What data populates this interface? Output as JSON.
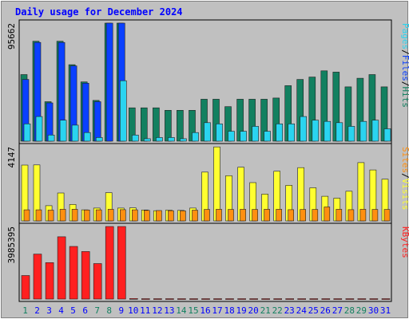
{
  "chart_data": {
    "type": "bar",
    "title": "Daily usage for December 2024",
    "categories": [
      "1",
      "2",
      "3",
      "4",
      "5",
      "6",
      "7",
      "8",
      "9",
      "10",
      "11",
      "12",
      "13",
      "14",
      "15",
      "16",
      "17",
      "18",
      "19",
      "20",
      "21",
      "22",
      "23",
      "24",
      "25",
      "26",
      "27",
      "28",
      "29",
      "30",
      "31"
    ],
    "weekend_days": [
      "1",
      "7",
      "8",
      "14",
      "15",
      "21",
      "22",
      "28",
      "29"
    ],
    "panels": [
      {
        "id": "top",
        "max_label": "95662",
        "ymax": 95662,
        "legend": [
          "Pages",
          "/",
          "Files",
          "/",
          "Hits"
        ],
        "series": [
          {
            "name": "Hits",
            "color": "#128060",
            "values": [
              54000,
              81000,
              32000,
              81000,
              62000,
              48000,
              33000,
              95662,
              95662,
              27000,
              27000,
              27000,
              25000,
              25000,
              25000,
              34000,
              34000,
              28000,
              34000,
              34000,
              34000,
              35000,
              45000,
              50000,
              52000,
              57000,
              56000,
              44000,
              51000,
              54000,
              44000
            ]
          },
          {
            "name": "Files",
            "color": "#0a40ff",
            "values": [
              50000,
              80000,
              31000,
              80000,
              61000,
              47000,
              32000,
              95662,
              95662,
              0,
              0,
              0,
              0,
              0,
              0,
              0,
              0,
              0,
              0,
              0,
              0,
              0,
              0,
              0,
              0,
              0,
              0,
              0,
              0,
              0,
              0
            ]
          },
          {
            "name": "Pages",
            "color": "#2ad4f0",
            "values": [
              14000,
              20000,
              5000,
              17000,
              13000,
              7000,
              3000,
              0,
              49000,
              5000,
              2000,
              3000,
              3000,
              2000,
              7000,
              15000,
              14000,
              8000,
              8000,
              12000,
              8000,
              14000,
              14000,
              20000,
              17000,
              16000,
              15000,
              12000,
              16000,
              17000,
              10000
            ]
          }
        ]
      },
      {
        "id": "middle",
        "max_label": "4147",
        "ymax": 4147,
        "legend": [
          "Sites",
          "/",
          "Visits"
        ],
        "series": [
          {
            "name": "Visits",
            "color": "#ffff30",
            "values": [
              3120,
              3130,
              850,
              1560,
              920,
              620,
              720,
              1580,
              720,
              730,
              610,
              570,
              600,
              590,
              720,
              2730,
              4140,
              2530,
              3000,
              2140,
              1500,
              2780,
              1990,
              2980,
              1850,
              1380,
              1270,
              1660,
              3260,
              2850,
              2330
            ]
          },
          {
            "name": "Sites",
            "color": "#ff8f10",
            "values": [
              620,
              620,
              600,
              650,
              650,
              610,
              620,
              650,
              630,
              620,
              590,
              580,
              570,
              560,
              600,
              640,
              650,
              640,
              650,
              640,
              650,
              650,
              630,
              640,
              640,
              780,
              650,
              630,
              650,
              640,
              640
            ]
          }
        ]
      },
      {
        "id": "bottom",
        "max_label": "3985395",
        "ymax": 3985395,
        "legend": [
          "KBytes"
        ],
        "series": [
          {
            "name": "KBytes",
            "color": "#ff2020",
            "values": [
              1290000,
              2470000,
              2000000,
              3420000,
              2890000,
              2610000,
              1950000,
              3985395,
              3985395,
              30000,
              20000,
              20000,
              20000,
              20000,
              20000,
              20000,
              20000,
              20000,
              20000,
              20000,
              20000,
              20000,
              20000,
              20000,
              20000,
              20000,
              20000,
              20000,
              20000,
              20000,
              20000
            ]
          }
        ]
      }
    ],
    "colors": {
      "title": "#0000ff",
      "weekday_label": "#0000ff",
      "weekend_label": "#128060",
      "background": "#c0c0c0",
      "plot_background": "#c0c0c0"
    }
  }
}
